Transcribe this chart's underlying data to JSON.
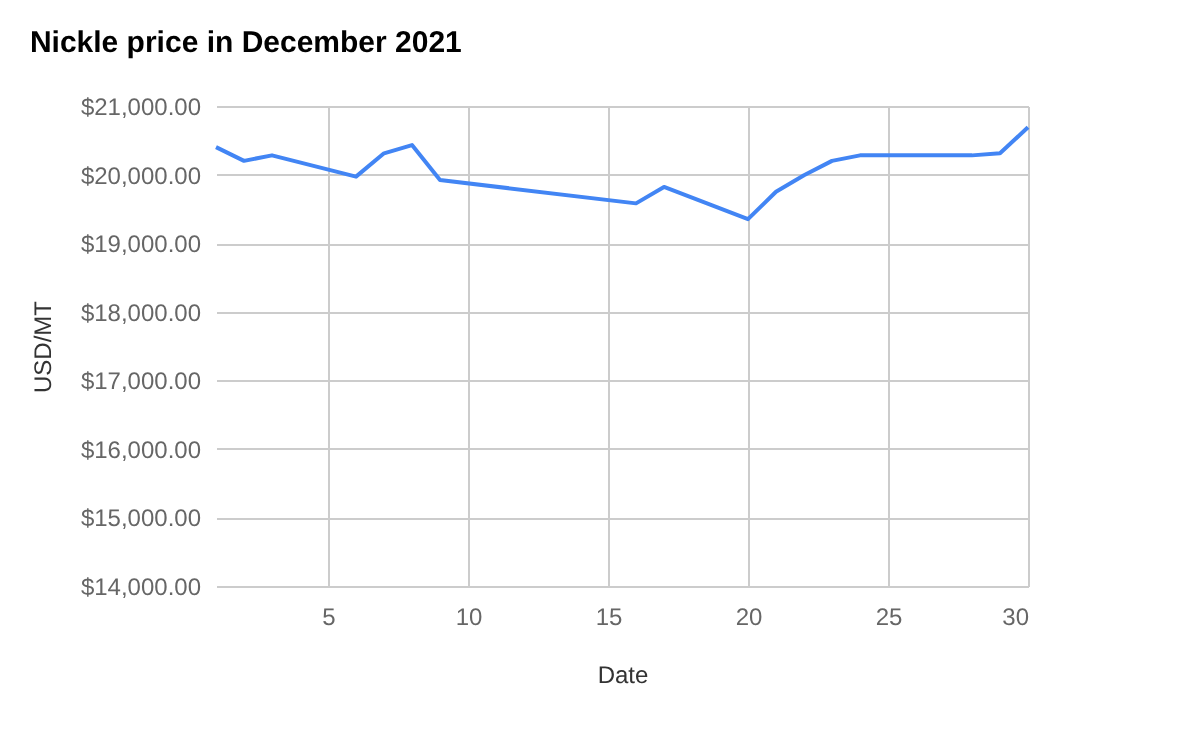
{
  "chart_data": {
    "type": "line",
    "title": "Nickle price in December 2021",
    "xlabel": "Date",
    "ylabel": "USD/MT",
    "xlim": [
      1,
      30
    ],
    "xticks": [
      5,
      10,
      15,
      20,
      25,
      30
    ],
    "ylim": [
      14000,
      21000
    ],
    "yticks": [
      {
        "value": 14000,
        "label": "$14,000.00"
      },
      {
        "value": 15000,
        "label": "$15,000.00"
      },
      {
        "value": 16000,
        "label": "$16,000.00"
      },
      {
        "value": 17000,
        "label": "$17,000.00"
      },
      {
        "value": 18000,
        "label": "$18,000.00"
      },
      {
        "value": 19000,
        "label": "$19,000.00"
      },
      {
        "value": 20000,
        "label": "$20,000.00"
      },
      {
        "value": 21000,
        "label": "$21,000.00"
      }
    ],
    "grid": true,
    "marker": "none",
    "line_style": "solid",
    "series": [
      {
        "color": "#4285f4",
        "x": [
          1,
          2,
          3,
          6,
          7,
          8,
          9,
          16,
          17,
          20,
          21,
          22,
          23,
          24,
          28,
          29,
          30
        ],
        "values": [
          20400,
          20200,
          20280,
          19970,
          20310,
          20430,
          19920,
          19580,
          19820,
          19350,
          19750,
          19990,
          20200,
          20280,
          20280,
          20310,
          20690
        ]
      }
    ]
  }
}
